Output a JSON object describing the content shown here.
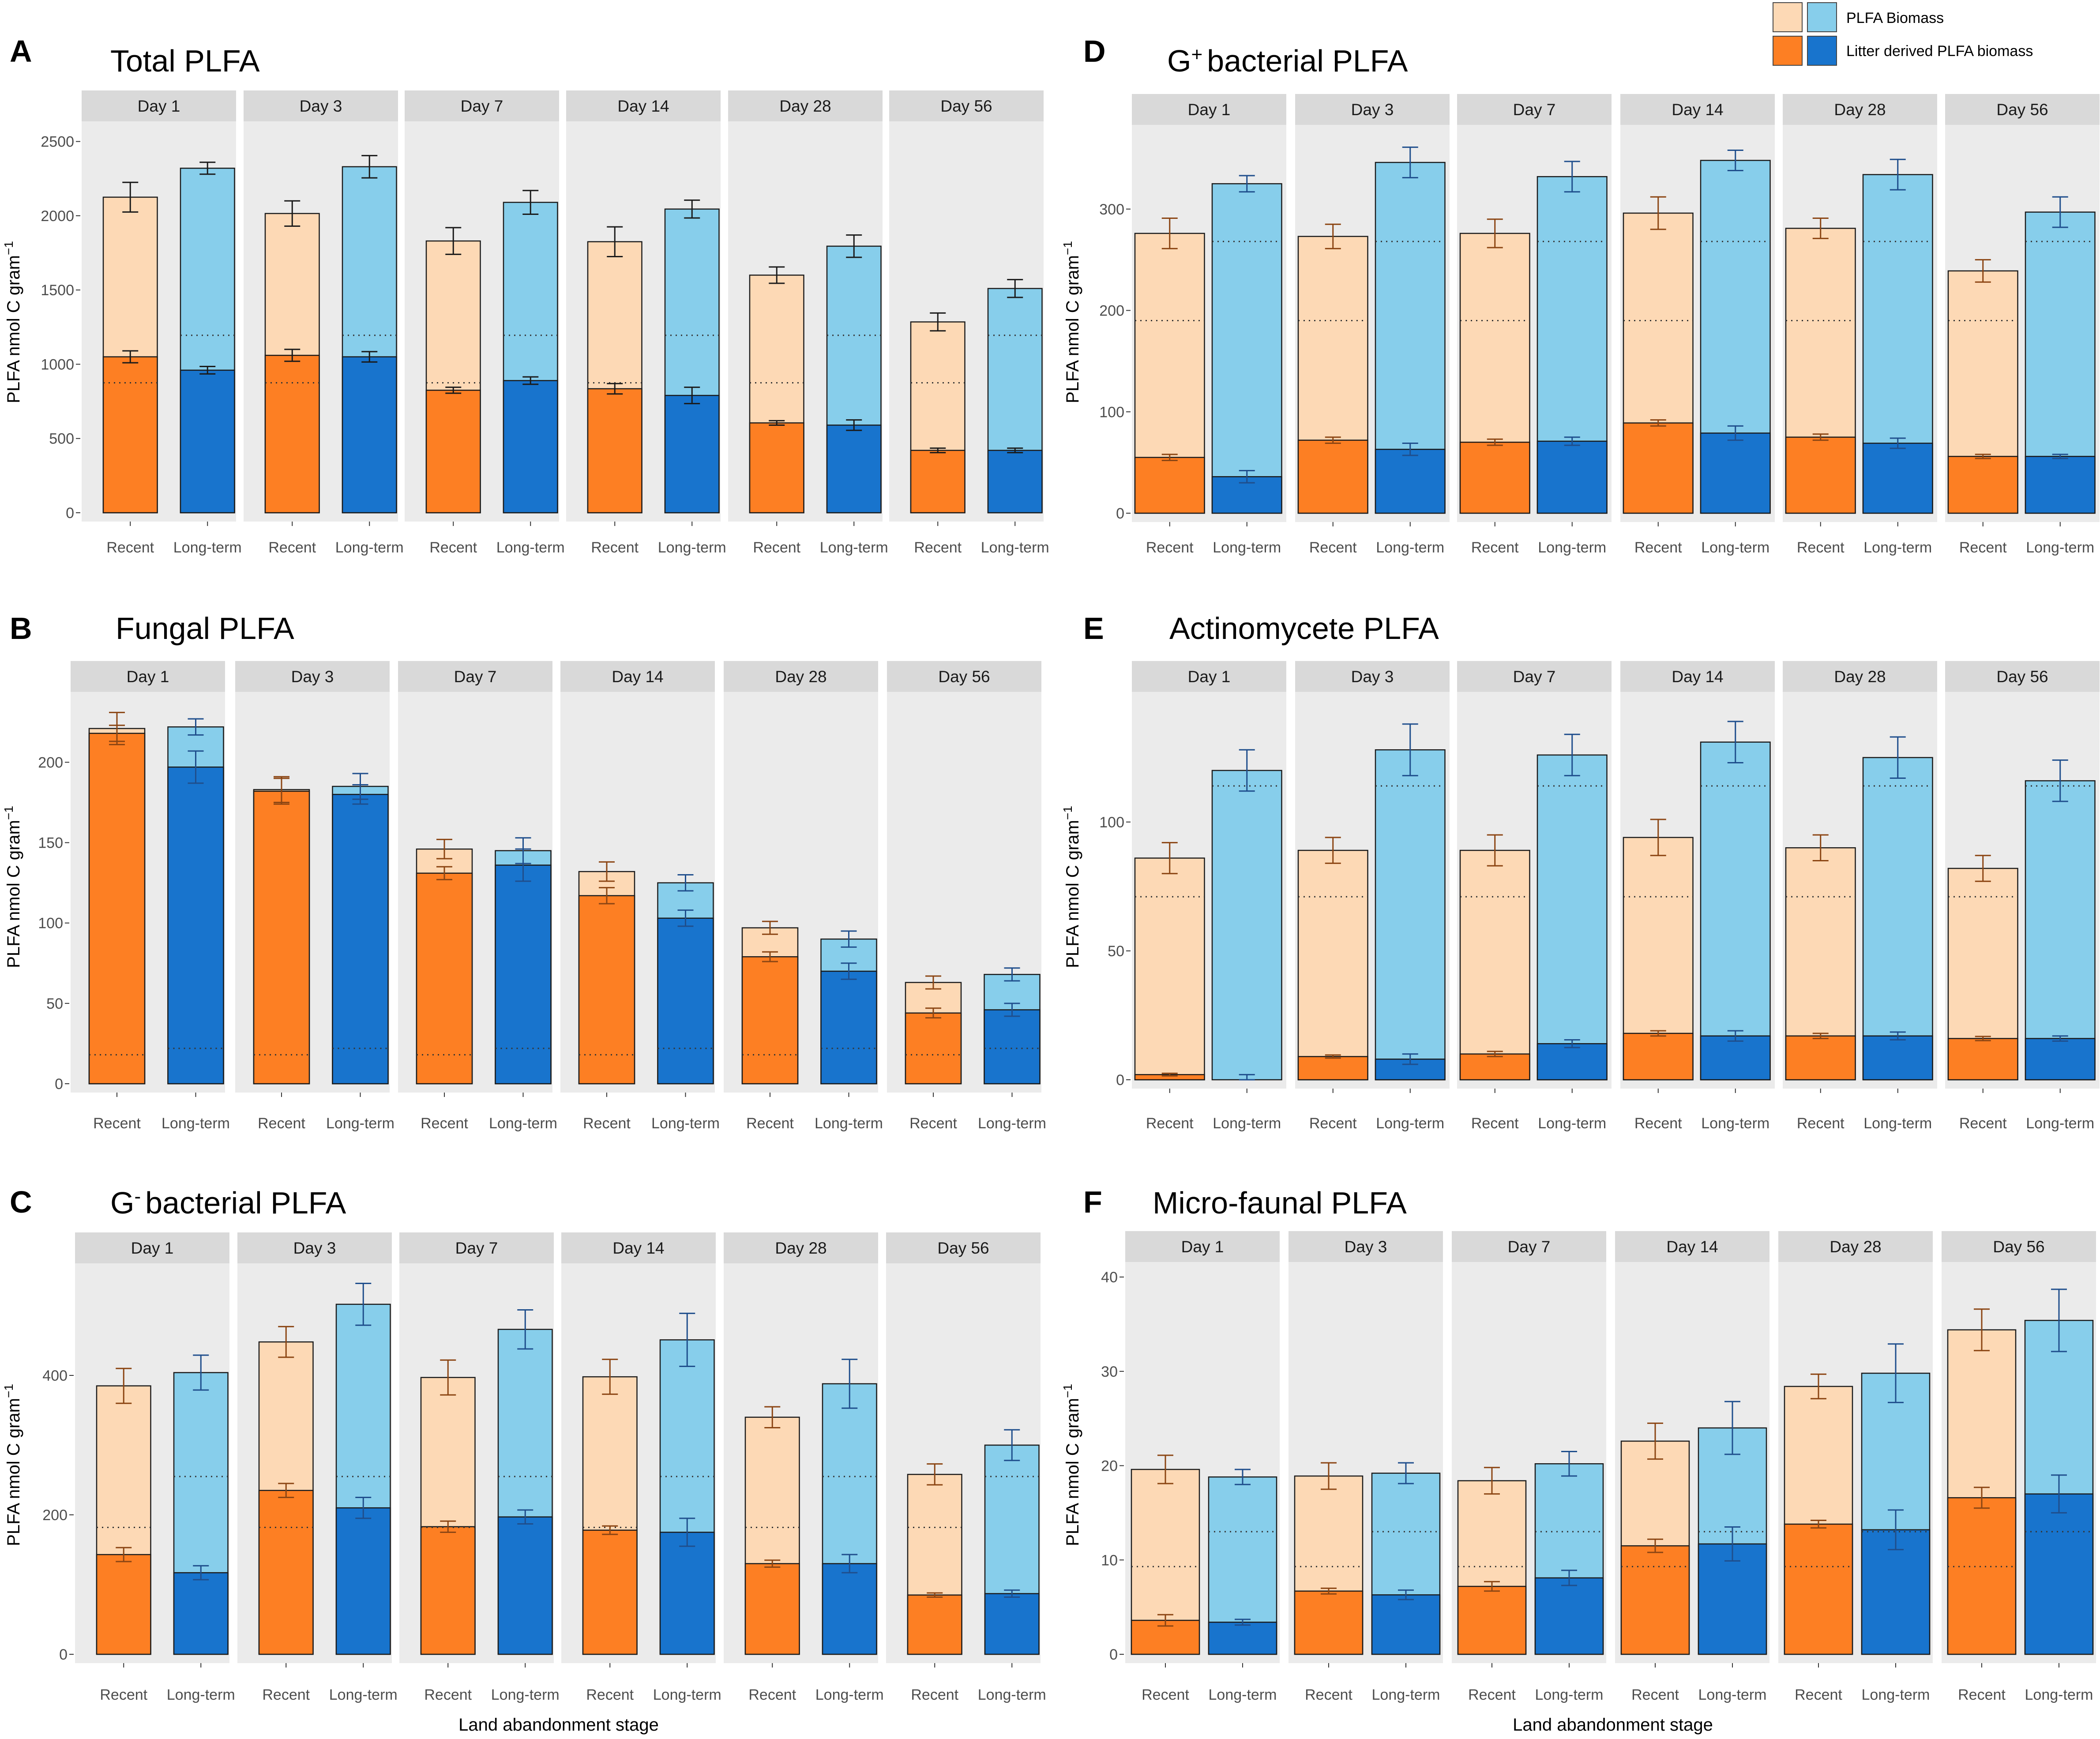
{
  "legend": {
    "total_label": "PLFA Biomass",
    "litter_label": "Litter derived PLFA biomass"
  },
  "colors": {
    "recent_total": "#FDD9B5",
    "recent_litter": "#FD7F23",
    "longterm_total": "#87CEEB",
    "longterm_litter": "#1874CD",
    "panel_bg": "#EBEBEB",
    "strip_bg": "#D9D9D9",
    "recent_error": "#8B4513",
    "longterm_error": "#1F4E8C"
  },
  "xlabel": "Land abandonment stage",
  "chart_data": [
    {
      "type": "bar",
      "letter": "A",
      "title": "Total PLFA",
      "ylabel": "PLFA nmol C gram",
      "ylim": [
        0,
        2600
      ],
      "yticks": [
        0,
        500,
        1000,
        1500,
        2000,
        2500
      ],
      "error_color": "dark",
      "categories": [
        "Recent",
        "Long-term"
      ],
      "facets": [
        "Day 1",
        "Day 3",
        "Day 7",
        "Day 14",
        "Day 28",
        "Day 56"
      ],
      "reference_lines": {
        "Recent": 875,
        "Long-term": 1195
      },
      "series": [
        {
          "name": "PLFA Biomass",
          "Recent": [
            2125,
            2015,
            1830,
            1825,
            1600,
            1285
          ],
          "Recent_err": [
            100,
            85,
            90,
            100,
            55,
            60
          ],
          "Long-term": [
            2320,
            2330,
            2090,
            2045,
            1795,
            1510
          ],
          "Long-term_err": [
            40,
            75,
            80,
            60,
            75,
            60
          ]
        },
        {
          "name": "Litter derived PLFA biomass",
          "Recent": [
            1050,
            1060,
            825,
            835,
            605,
            420
          ],
          "Recent_err": [
            40,
            40,
            20,
            35,
            15,
            15
          ],
          "Long-term": [
            960,
            1050,
            890,
            790,
            590,
            420
          ],
          "Long-term_err": [
            25,
            35,
            25,
            55,
            35,
            15
          ]
        }
      ]
    },
    {
      "type": "bar",
      "letter": "B",
      "title": "Fungal PLFA",
      "ylabel": "PLFA nmol C gram",
      "ylim": [
        0,
        235
      ],
      "yticks": [
        0,
        50,
        100,
        150,
        200
      ],
      "error_color": "colored",
      "categories": [
        "Recent",
        "Long-term"
      ],
      "facets": [
        "Day 1",
        "Day 3",
        "Day 7",
        "Day 14",
        "Day 28",
        "Day 56"
      ],
      "reference_lines": {
        "Recent": 18,
        "Long-term": 22
      },
      "series": [
        {
          "name": "PLFA Biomass",
          "Recent": [
            221,
            183,
            146,
            132,
            97,
            63
          ],
          "Recent_err": [
            10,
            8,
            6,
            6,
            4,
            4
          ],
          "Long-term": [
            222,
            185,
            145,
            125,
            90,
            68
          ],
          "Long-term_err": [
            5,
            8,
            8,
            5,
            5,
            4
          ]
        },
        {
          "name": "Litter derived PLFA biomass",
          "Recent": [
            218,
            182,
            131,
            117,
            79,
            44
          ],
          "Recent_err": [
            5,
            8,
            4,
            5,
            3,
            3
          ],
          "Long-term": [
            197,
            180,
            136,
            103,
            70,
            46
          ],
          "Long-term_err": [
            10,
            6,
            10,
            5,
            5,
            4
          ]
        }
      ]
    },
    {
      "type": "bar",
      "letter": "C",
      "title": "G bacterial PLFA",
      "ylabel": "PLFA nmol C gram",
      "ylim": [
        0,
        550
      ],
      "yticks": [
        0,
        200,
        400
      ],
      "error_color": "colored",
      "categories": [
        "Recent",
        "Long-term"
      ],
      "facets": [
        "Day 1",
        "Day 3",
        "Day 7",
        "Day 14",
        "Day 28",
        "Day 56"
      ],
      "reference_lines": {
        "Recent": 182,
        "Long-term": 255
      },
      "series": [
        {
          "name": "PLFA Biomass",
          "Recent": [
            385,
            448,
            397,
            398,
            340,
            258
          ],
          "Recent_err": [
            25,
            22,
            25,
            25,
            15,
            15
          ],
          "Long-term": [
            404,
            502,
            466,
            451,
            388,
            300
          ],
          "Long-term_err": [
            25,
            30,
            28,
            38,
            35,
            22
          ]
        },
        {
          "name": "Litter derived PLFA biomass",
          "Recent": [
            143,
            235,
            183,
            178,
            130,
            85
          ],
          "Recent_err": [
            10,
            10,
            8,
            6,
            5,
            3
          ],
          "Long-term": [
            117,
            210,
            197,
            175,
            130,
            87
          ],
          "Long-term_err": [
            10,
            15,
            10,
            20,
            13,
            5
          ]
        }
      ]
    },
    {
      "type": "bar",
      "letter": "D",
      "title": "G bacterial PLFA",
      "ylabel": "PLFA nmol C gram",
      "ylim": [
        0,
        380
      ],
      "yticks": [
        0,
        100,
        200,
        300
      ],
      "error_color": "colored",
      "categories": [
        "Recent",
        "Long-term"
      ],
      "facets": [
        "Day 1",
        "Day 3",
        "Day 7",
        "Day 14",
        "Day 28",
        "Day 56"
      ],
      "reference_lines": {
        "Recent": 190,
        "Long-term": 268
      },
      "series": [
        {
          "name": "PLFA Biomass",
          "Recent": [
            276,
            273,
            276,
            296,
            281,
            239
          ],
          "Recent_err": [
            15,
            12,
            14,
            16,
            10,
            11
          ],
          "Long-term": [
            325,
            346,
            332,
            348,
            334,
            297
          ],
          "Long-term_err": [
            8,
            15,
            15,
            10,
            15,
            15
          ]
        },
        {
          "name": "Litter derived PLFA biomass",
          "Recent": [
            55,
            72,
            70,
            89,
            75,
            56
          ],
          "Recent_err": [
            3,
            3,
            3,
            3,
            3,
            2
          ],
          "Long-term": [
            36,
            63,
            71,
            79,
            69,
            56
          ],
          "Long-term_err": [
            6,
            6,
            4,
            7,
            5,
            2
          ]
        }
      ]
    },
    {
      "type": "bar",
      "letter": "E",
      "title": "Actinomycete PLFA",
      "ylabel": "PLFA nmol C gram",
      "ylim": [
        0,
        145
      ],
      "yticks": [
        0,
        50,
        100
      ],
      "error_color": "colored",
      "categories": [
        "Recent",
        "Long-term"
      ],
      "facets": [
        "Day 1",
        "Day 3",
        "Day 7",
        "Day 14",
        "Day 28",
        "Day 56"
      ],
      "reference_lines": {
        "Recent": 71,
        "Long-term": 114
      },
      "series": [
        {
          "name": "PLFA Biomass",
          "Recent": [
            86,
            89,
            89,
            94,
            90,
            82
          ],
          "Recent_err": [
            6,
            5,
            6,
            7,
            5,
            5
          ],
          "Long-term": [
            120,
            128,
            126,
            131,
            125,
            116
          ],
          "Long-term_err": [
            8,
            10,
            8,
            8,
            8,
            8
          ]
        },
        {
          "name": "Litter derived PLFA biomass",
          "Recent": [
            2,
            9,
            10,
            18,
            17,
            16
          ],
          "Recent_err": [
            0.5,
            0.6,
            1,
            1,
            1,
            0.8
          ],
          "Long-term": [
            0,
            8,
            14,
            17,
            17,
            16
          ],
          "Long-term_err": [
            2,
            2,
            1.5,
            2,
            1.5,
            1
          ]
        }
      ]
    },
    {
      "type": "bar",
      "letter": "F",
      "title": "Micro-faunal PLFA",
      "ylabel": "PLFA nmol C gram",
      "ylim": [
        0,
        41.5
      ],
      "yticks": [
        0,
        10,
        20,
        30,
        40
      ],
      "error_color": "colored",
      "categories": [
        "Recent",
        "Long-term"
      ],
      "facets": [
        "Day 1",
        "Day 3",
        "Day 7",
        "Day 14",
        "Day 28",
        "Day 56"
      ],
      "reference_lines": {
        "Recent": 9.3,
        "Long-term": 13
      },
      "series": [
        {
          "name": "PLFA Biomass",
          "Recent": [
            19.6,
            18.9,
            18.4,
            22.6,
            28.4,
            34.4
          ],
          "Recent_err": [
            1.5,
            1.4,
            1.4,
            1.9,
            1.3,
            2.2
          ],
          "Long-term": [
            18.8,
            19.2,
            20.2,
            24,
            29.8,
            35.4
          ],
          "Long-term_err": [
            0.8,
            1.1,
            1.3,
            2.8,
            3.1,
            3.3
          ]
        },
        {
          "name": "Litter derived PLFA biomass",
          "Recent": [
            3.6,
            6.7,
            7.2,
            11.5,
            13.8,
            16.6
          ],
          "Recent_err": [
            0.6,
            0.3,
            0.5,
            0.7,
            0.4,
            1.1
          ],
          "Long-term": [
            3.4,
            6.3,
            8.1,
            11.7,
            13.2,
            17
          ],
          "Long-term_err": [
            0.3,
            0.5,
            0.8,
            1.8,
            2.1,
            2
          ]
        }
      ]
    }
  ]
}
